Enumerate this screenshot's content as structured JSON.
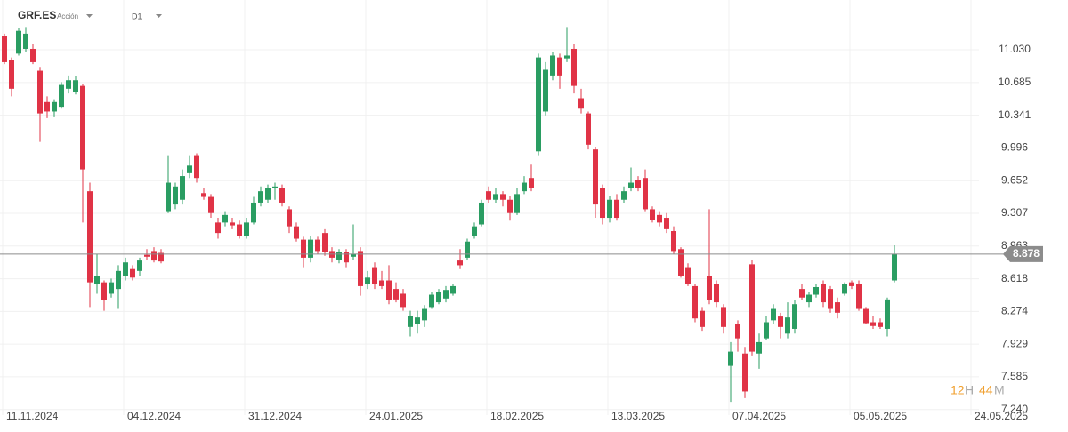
{
  "header": {
    "symbol": "GRF.ES",
    "asset_type": "Acción",
    "timeframe": "D1"
  },
  "countdown": {
    "hours": 12,
    "hours_unit": "H",
    "minutes": 44,
    "minutes_unit": "M"
  },
  "chart_data": {
    "type": "candlestick",
    "categories": [
      "11.11.2024",
      null,
      null,
      null,
      null,
      null,
      null,
      null,
      null,
      null,
      null,
      null,
      null,
      null,
      null,
      null,
      null,
      "04.12.2024",
      null,
      null,
      null,
      null,
      null,
      null,
      null,
      null,
      null,
      null,
      null,
      null,
      null,
      null,
      null,
      null,
      "31.12.2024",
      null,
      null,
      null,
      null,
      null,
      null,
      null,
      null,
      null,
      null,
      null,
      null,
      null,
      null,
      null,
      null,
      "24.01.2025",
      null,
      null,
      null,
      null,
      null,
      null,
      null,
      null,
      null,
      null,
      null,
      null,
      null,
      null,
      null,
      null,
      "18.02.2025",
      null,
      null,
      null,
      null,
      null,
      null,
      null,
      null,
      null,
      null,
      null,
      null,
      null,
      null,
      null,
      null,
      "13.03.2025",
      null,
      null,
      null,
      null,
      null,
      null,
      null,
      null,
      null,
      null,
      null,
      null,
      null,
      null,
      null,
      null,
      "07.04.2025",
      null,
      null,
      null,
      null,
      null,
      null,
      null,
      null,
      null,
      null,
      null,
      null,
      null,
      null,
      null,
      null,
      "05.05.2025",
      null,
      null,
      null,
      null,
      null,
      null,
      null,
      null,
      null,
      null,
      null,
      null,
      null,
      null,
      null,
      null,
      "24.05.2025"
    ],
    "open": [
      11.18,
      10.92,
      10.99,
      11.04,
      11.04,
      10.81,
      10.48,
      10.38,
      10.43,
      10.62,
      10.59,
      10.65,
      9.54,
      8.56,
      8.58,
      8.46,
      8.51,
      8.65,
      8.72,
      8.7,
      8.87,
      8.91,
      8.89,
      9.33,
      9.4,
      9.45,
      9.73,
      9.92,
      9.52,
      9.48,
      9.21,
      9.21,
      9.21,
      9.19,
      9.07,
      9.21,
      9.42,
      9.45,
      9.57,
      9.57,
      9.35,
      9.17,
      9.03,
      8.84,
      9.03,
      9.1,
      8.91,
      8.82,
      8.9,
      8.85,
      8.91,
      8.56,
      8.74,
      8.6,
      8.6,
      8.51,
      8.46,
      8.11,
      8.14,
      8.18,
      8.32,
      8.37,
      8.41,
      8.46,
      8.81,
      8.84,
      9.07,
      9.19,
      9.54,
      9.45,
      9.51,
      9.45,
      9.31,
      9.54,
      9.68,
      9.96,
      10.38,
      10.76,
      10.95,
      10.94,
      11.04,
      10.52,
      10.36,
      9.98,
      9.57,
      9.26,
      9.45,
      9.45,
      9.57,
      9.66,
      9.68,
      9.35,
      9.29,
      9.26,
      9.12,
      8.93,
      8.74,
      8.54,
      8.28,
      8.65,
      8.56,
      8.32,
      7.7,
      8.14,
      7.83,
      8.77,
      7.83,
      7.99,
      8.18,
      8.22,
      8.04,
      8.09,
      8.51,
      8.37,
      8.45,
      8.56,
      8.51,
      8.37,
      8.46,
      8.58,
      8.56,
      8.3,
      8.16,
      8.16,
      8.09,
      8.6,
      null,
      null,
      null,
      null,
      null,
      null,
      null,
      null,
      null,
      null,
      null
    ],
    "high": [
      11.2,
      10.95,
      11.26,
      11.27,
      11.09,
      10.85,
      10.54,
      10.51,
      10.69,
      10.76,
      10.75,
      10.67,
      9.63,
      8.88,
      8.6,
      8.62,
      8.76,
      8.84,
      8.76,
      8.84,
      8.93,
      8.95,
      8.93,
      9.92,
      9.63,
      9.77,
      9.92,
      9.94,
      9.57,
      9.51,
      9.26,
      9.33,
      9.26,
      9.23,
      9.26,
      9.48,
      9.59,
      9.61,
      9.63,
      9.61,
      9.38,
      9.21,
      9.06,
      9.07,
      9.06,
      9.14,
      8.95,
      8.93,
      8.93,
      9.19,
      8.95,
      8.7,
      8.79,
      8.7,
      8.76,
      8.58,
      8.51,
      8.28,
      8.28,
      8.34,
      8.48,
      8.51,
      8.54,
      8.56,
      8.93,
      9.04,
      9.21,
      9.45,
      9.59,
      9.57,
      9.54,
      9.49,
      9.57,
      9.7,
      9.82,
      10.99,
      10.9,
      11.01,
      10.99,
      11.27,
      11.09,
      10.62,
      10.38,
      10.01,
      9.61,
      9.49,
      9.51,
      9.59,
      9.79,
      9.7,
      9.77,
      9.38,
      9.33,
      9.31,
      9.17,
      8.95,
      8.78,
      8.56,
      8.32,
      9.35,
      8.6,
      8.35,
      7.95,
      8.18,
      7.9,
      8.82,
      8.04,
      8.23,
      8.35,
      8.26,
      8.37,
      8.39,
      8.56,
      8.48,
      8.56,
      8.6,
      8.54,
      8.42,
      8.58,
      8.6,
      8.6,
      8.32,
      8.23,
      8.2,
      8.42,
      8.97,
      null,
      null,
      null,
      null,
      null,
      null,
      null,
      null,
      null,
      null,
      null
    ],
    "low": [
      10.88,
      10.54,
      10.97,
      11.01,
      10.88,
      10.06,
      10.31,
      10.32,
      10.41,
      10.57,
      10.56,
      9.21,
      8.32,
      8.46,
      8.28,
      8.42,
      8.3,
      8.6,
      8.6,
      8.65,
      8.82,
      8.79,
      8.78,
      9.31,
      9.35,
      9.4,
      9.68,
      9.63,
      9.45,
      9.26,
      9.04,
      9.17,
      9.14,
      9.04,
      9.04,
      9.19,
      9.38,
      9.42,
      9.45,
      9.38,
      9.1,
      9.01,
      8.74,
      8.79,
      8.88,
      8.86,
      8.79,
      8.78,
      8.74,
      8.82,
      8.44,
      8.51,
      8.51,
      8.51,
      8.35,
      8.37,
      8.28,
      8.01,
      8.04,
      8.11,
      8.3,
      8.35,
      8.37,
      8.44,
      8.72,
      8.82,
      9.04,
      9.17,
      9.42,
      9.42,
      9.38,
      9.23,
      9.29,
      9.51,
      9.54,
      9.92,
      10.34,
      10.71,
      10.62,
      10.9,
      10.57,
      10.36,
      9.98,
      9.26,
      9.19,
      9.21,
      9.23,
      9.42,
      9.54,
      9.54,
      9.33,
      9.21,
      9.17,
      9.1,
      8.88,
      8.63,
      8.54,
      8.16,
      8.07,
      8.35,
      8.32,
      8.04,
      7.32,
      7.85,
      7.36,
      7.81,
      7.67,
      7.97,
      8.14,
      7.99,
      7.99,
      8.04,
      8.39,
      8.32,
      8.42,
      8.32,
      8.26,
      8.2,
      8.44,
      8.51,
      8.28,
      8.14,
      8.09,
      8.09,
      8.01,
      8.58,
      null,
      null,
      null,
      null,
      null,
      null,
      null,
      null,
      null,
      null,
      null
    ],
    "close": [
      10.9,
      10.62,
      11.23,
      11.2,
      10.9,
      10.36,
      10.38,
      10.48,
      10.66,
      10.71,
      10.71,
      9.77,
      8.58,
      8.65,
      8.39,
      8.58,
      8.7,
      8.79,
      8.63,
      8.81,
      8.85,
      8.81,
      8.8,
      9.63,
      9.59,
      9.7,
      9.81,
      9.68,
      9.48,
      9.31,
      9.1,
      9.29,
      9.18,
      9.07,
      9.21,
      9.42,
      9.54,
      9.57,
      9.59,
      9.42,
      9.17,
      9.04,
      8.84,
      9.03,
      8.91,
      8.9,
      8.84,
      8.9,
      8.79,
      8.88,
      8.54,
      8.63,
      8.56,
      8.54,
      8.39,
      8.4,
      8.32,
      8.23,
      8.21,
      8.3,
      8.45,
      8.48,
      8.5,
      8.54,
      8.76,
      9.01,
      9.17,
      9.42,
      9.45,
      9.51,
      9.45,
      9.31,
      9.51,
      9.63,
      9.57,
      10.95,
      10.82,
      10.97,
      10.76,
      10.97,
      10.65,
      10.41,
      10.03,
      9.4,
      9.26,
      9.45,
      9.26,
      9.54,
      9.63,
      9.57,
      9.35,
      9.24,
      9.21,
      9.14,
      8.91,
      8.65,
      8.56,
      8.2,
      8.11,
      8.39,
      8.37,
      8.11,
      7.85,
      7.99,
      7.43,
      7.85,
      7.95,
      8.16,
      8.3,
      8.11,
      8.21,
      8.35,
      8.42,
      8.45,
      8.53,
      8.37,
      8.3,
      8.26,
      8.56,
      8.54,
      8.3,
      8.15,
      8.12,
      8.11,
      8.4,
      8.878,
      null,
      null,
      null,
      null,
      null,
      null,
      null,
      null,
      null,
      null,
      null
    ],
    "up_color": "#2a9d62",
    "down_color": "#e03346",
    "ylim": [
      7.2,
      11.555
    ],
    "yticks": [
      {
        "value": 11.03,
        "label": "11.030"
      },
      10.685,
      10.341,
      9.996,
      9.652,
      9.307,
      8.963,
      8.618,
      8.274,
      7.929,
      7.585,
      {
        "value": 7.24,
        "label": "7.240"
      }
    ],
    "last_price": 8.878,
    "grid": true
  }
}
